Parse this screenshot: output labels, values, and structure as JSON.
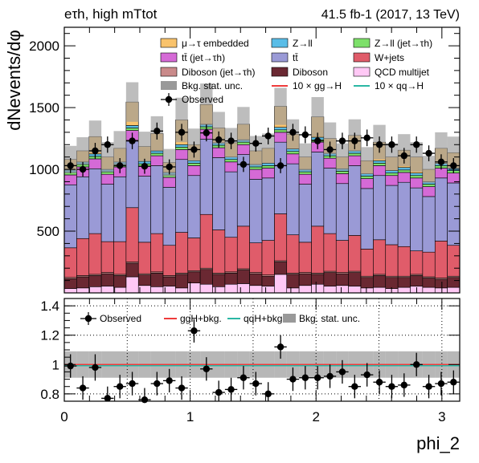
{
  "header": {
    "channel": "eτh, high mTtot",
    "lumi": "41.5 fb-1 (2017, 13 TeV)"
  },
  "chart_data": [
    {
      "type": "area",
      "ylabel": "dNevents/dφ",
      "xlabel": "phi_2",
      "xlim": [
        0,
        3.1416
      ],
      "ylim": [
        0,
        2150
      ],
      "yticks": [
        "500",
        "1000",
        "1500",
        "2000"
      ],
      "ytick_values": [
        500,
        1000,
        1500,
        2000
      ],
      "xticks": [
        "0",
        "1",
        "2",
        "3"
      ],
      "xtick_values": [
        0,
        1,
        2,
        3
      ],
      "bins": 32,
      "legend": [
        {
          "label": "μ→τ embedded",
          "color": "#f9c36c"
        },
        {
          "label": "Z→ll",
          "color": "#5abde7"
        },
        {
          "label": "Z→ll (jet→τh)",
          "color": "#7de06a"
        },
        {
          "label": "tt̄ (jet→τh)",
          "color": "#d56ad6"
        },
        {
          "label": "tt̄",
          "color": "#9a9ad6"
        },
        {
          "label": "W+jets",
          "color": "#e05c6a"
        },
        {
          "label": "Diboson (jet→τh)",
          "color": "#c98a8a"
        },
        {
          "label": "Diboson",
          "color": "#6a2832"
        },
        {
          "label": "QCD multijet",
          "color": "#ffc8f5"
        },
        {
          "label": "Bkg. stat. unc.",
          "color": "#999999"
        },
        {
          "label": "10 × gg→H",
          "color": "#ef3b3b"
        },
        {
          "label": "10 × qq→H",
          "color": "#2ab7a4"
        },
        {
          "label": "Observed",
          "color": "#000000"
        }
      ],
      "stack_order": [
        "QCD multijet",
        "Diboson",
        "Diboson (jet→τh)",
        "W+jets",
        "tt̄",
        "tt̄ (jet→τh)",
        "Z→ll (jet→τh)",
        "Z→ll",
        "μ→τ embedded"
      ],
      "series": [
        {
          "name": "QCD multijet",
          "values": [
            35,
            40,
            50,
            55,
            45,
            130,
            60,
            50,
            55,
            40,
            80,
            70,
            50,
            70,
            75,
            60,
            55,
            150,
            40,
            60,
            70,
            55,
            60,
            55,
            40,
            45,
            35,
            45,
            55,
            45,
            40,
            45
          ]
        },
        {
          "name": "Diboson",
          "values": [
            80,
            90,
            90,
            100,
            95,
            110,
            85,
            110,
            75,
            110,
            90,
            120,
            100,
            90,
            110,
            95,
            80,
            100,
            110,
            95,
            80,
            110,
            95,
            110,
            85,
            95,
            90,
            80,
            85,
            75,
            70,
            80
          ]
        },
        {
          "name": "Diboson (jet→τh)",
          "values": [
            10,
            10,
            10,
            10,
            10,
            10,
            10,
            10,
            10,
            10,
            10,
            10,
            10,
            10,
            10,
            10,
            10,
            10,
            10,
            10,
            10,
            10,
            10,
            10,
            10,
            10,
            10,
            10,
            10,
            10,
            10,
            10
          ]
        },
        {
          "name": "W+jets",
          "values": [
            240,
            300,
            330,
            250,
            265,
            440,
            255,
            310,
            245,
            330,
            265,
            435,
            350,
            280,
            345,
            240,
            280,
            380,
            310,
            245,
            380,
            305,
            260,
            290,
            220,
            280,
            255,
            240,
            190,
            200,
            300,
            250
          ]
        },
        {
          "name": "tt̄",
          "values": [
            510,
            500,
            525,
            465,
            525,
            545,
            535,
            550,
            470,
            590,
            505,
            610,
            585,
            530,
            580,
            515,
            505,
            580,
            575,
            470,
            600,
            530,
            460,
            565,
            490,
            520,
            480,
            520,
            510,
            450,
            510,
            505
          ]
        },
        {
          "name": "tt̄ (jet→τh)",
          "values": [
            80,
            80,
            80,
            80,
            80,
            80,
            80,
            80,
            80,
            80,
            80,
            80,
            80,
            80,
            80,
            80,
            80,
            80,
            80,
            80,
            80,
            80,
            80,
            80,
            80,
            80,
            80,
            80,
            80,
            80,
            80,
            80
          ]
        },
        {
          "name": "Z→ll (jet→τh)",
          "values": [
            20,
            20,
            20,
            20,
            20,
            20,
            20,
            20,
            20,
            20,
            20,
            20,
            20,
            20,
            20,
            20,
            20,
            20,
            20,
            20,
            20,
            20,
            20,
            20,
            20,
            20,
            20,
            20,
            20,
            20,
            20,
            20
          ]
        },
        {
          "name": "Z→ll",
          "values": [
            20,
            20,
            20,
            20,
            20,
            20,
            20,
            20,
            20,
            20,
            20,
            20,
            20,
            20,
            20,
            20,
            20,
            20,
            20,
            20,
            20,
            20,
            20,
            20,
            20,
            20,
            20,
            20,
            20,
            20,
            20,
            20
          ]
        },
        {
          "name": "μ→τ embedded",
          "values": [
            85,
            90,
            140,
            100,
            110,
            190,
            120,
            140,
            80,
            200,
            130,
            160,
            120,
            115,
            125,
            110,
            120,
            170,
            120,
            100,
            165,
            120,
            95,
            125,
            105,
            150,
            110,
            140,
            130,
            100,
            120,
            125
          ]
        }
      ],
      "unc_total": [
        110,
        110,
        130,
        120,
        140,
        160,
        120,
        140,
        110,
        180,
        130,
        170,
        130,
        120,
        140,
        120,
        120,
        150,
        120,
        110,
        160,
        130,
        110,
        130,
        110,
        140,
        110,
        130,
        120,
        110,
        130,
        130
      ],
      "observed": [
        1030,
        1010,
        1035,
        1005,
        1135,
        1195,
        1205,
        1025,
        1170,
        1210,
        1300,
        1070,
        1180,
        1240,
        1220,
        1240,
        1275,
        1270,
        1225,
        1280,
        1170,
        1260,
        1220,
        1080,
        1290,
        1240,
        1270,
        1275,
        1230,
        1170,
        1210,
        1130,
        1195,
        1220,
        1290,
        1260,
        1230,
        1100
      ],
      "observed_bins": [
        1030,
        1000,
        1150,
        1200,
        1030,
        1230,
        1025,
        1310,
        1020,
        1300,
        1160,
        1295,
        1240,
        1230,
        1040,
        1210,
        1270,
        1030,
        1300,
        1280,
        1230,
        1160,
        1230,
        1230,
        1255,
        1200,
        1200,
        1110,
        1200,
        1130,
        1060,
        1030
      ]
    },
    {
      "type": "line",
      "xlabel": "phi_2",
      "xlim": [
        0,
        3.1416
      ],
      "ylim": [
        0.75,
        1.45
      ],
      "yticks": [
        "0.8",
        "1",
        "1.2",
        "1.4"
      ],
      "ytick_values": [
        0.8,
        1.0,
        1.2,
        1.4
      ],
      "xticks": [
        "0",
        "1",
        "2",
        "3"
      ],
      "xtick_values": [
        0,
        1,
        2,
        3
      ],
      "legend": [
        {
          "label": "Observed",
          "color": "#000000"
        },
        {
          "label": "ggH+bkg.",
          "color": "#ef3b3b"
        },
        {
          "label": "qqH+bkg.",
          "color": "#2ab7a4"
        },
        {
          "label": "Bkg. stat. unc.",
          "color": "#999999"
        }
      ],
      "ratio_observed": [
        0.99,
        0.84,
        0.98,
        0.77,
        0.85,
        0.87,
        0.76,
        0.87,
        0.89,
        0.84,
        1.23,
        0.97,
        0.81,
        0.83,
        0.91,
        0.87,
        0.8,
        1.12,
        0.9,
        0.91,
        0.91,
        0.92,
        0.95,
        0.85,
        0.93,
        0.88,
        0.85,
        0.86,
        1.0,
        0.85,
        0.87,
        0.88
      ],
      "ratio_unc": [
        0.09,
        0.09,
        0.09,
        0.09,
        0.09,
        0.09,
        0.09,
        0.09,
        0.09,
        0.09,
        0.09,
        0.09,
        0.09,
        0.09,
        0.09,
        0.09,
        0.09,
        0.09,
        0.09,
        0.09,
        0.09,
        0.09,
        0.09,
        0.09,
        0.09,
        0.09,
        0.09,
        0.09,
        0.09,
        0.09,
        0.09,
        0.09
      ],
      "ratio_err": [
        0.08,
        0.08,
        0.09,
        0.08,
        0.08,
        0.08,
        0.08,
        0.08,
        0.08,
        0.08,
        0.08,
        0.08,
        0.08,
        0.08,
        0.08,
        0.08,
        0.08,
        0.08,
        0.08,
        0.08,
        0.08,
        0.08,
        0.08,
        0.08,
        0.08,
        0.08,
        0.08,
        0.08,
        0.08,
        0.08,
        0.08,
        0.08
      ]
    }
  ]
}
